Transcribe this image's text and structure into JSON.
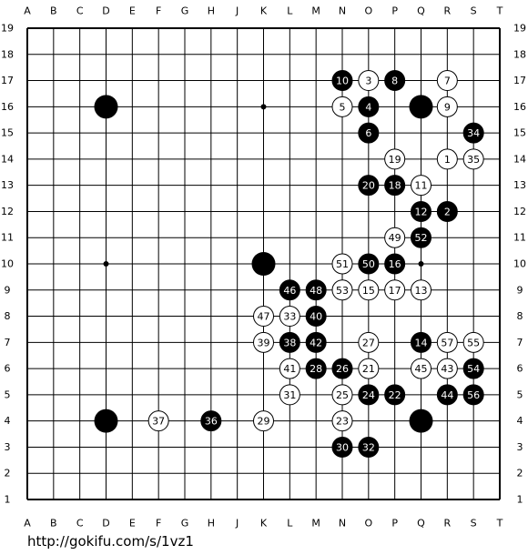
{
  "board": {
    "columns": [
      "A",
      "B",
      "C",
      "D",
      "E",
      "F",
      "G",
      "H",
      "J",
      "K",
      "L",
      "M",
      "N",
      "O",
      "P",
      "Q",
      "R",
      "S",
      "T"
    ],
    "rows": [
      19,
      18,
      17,
      16,
      15,
      14,
      13,
      12,
      11,
      10,
      9,
      8,
      7,
      6,
      5,
      4,
      3,
      2,
      1
    ],
    "stones": [
      {
        "col": "D",
        "row": 16,
        "color": "black"
      },
      {
        "col": "Q",
        "row": 16,
        "color": "black"
      },
      {
        "col": "D",
        "row": 4,
        "color": "black"
      },
      {
        "col": "Q",
        "row": 4,
        "color": "black"
      },
      {
        "col": "K",
        "row": 10,
        "color": "black"
      },
      {
        "col": "R",
        "row": 14,
        "color": "white",
        "label": 1
      },
      {
        "col": "R",
        "row": 12,
        "color": "black",
        "label": 2
      },
      {
        "col": "O",
        "row": 17,
        "color": "white",
        "label": 3
      },
      {
        "col": "O",
        "row": 16,
        "color": "black",
        "label": 4
      },
      {
        "col": "N",
        "row": 16,
        "color": "white",
        "label": 5
      },
      {
        "col": "O",
        "row": 15,
        "color": "black",
        "label": 6
      },
      {
        "col": "R",
        "row": 17,
        "color": "white",
        "label": 7
      },
      {
        "col": "P",
        "row": 17,
        "color": "black",
        "label": 8
      },
      {
        "col": "R",
        "row": 16,
        "color": "white",
        "label": 9
      },
      {
        "col": "N",
        "row": 17,
        "color": "black",
        "label": 10
      },
      {
        "col": "Q",
        "row": 13,
        "color": "white",
        "label": 11
      },
      {
        "col": "Q",
        "row": 12,
        "color": "black",
        "label": 12
      },
      {
        "col": "Q",
        "row": 9,
        "color": "white",
        "label": 13
      },
      {
        "col": "Q",
        "row": 7,
        "color": "black",
        "label": 14
      },
      {
        "col": "O",
        "row": 9,
        "color": "white",
        "label": 15
      },
      {
        "col": "P",
        "row": 10,
        "color": "black",
        "label": 16
      },
      {
        "col": "P",
        "row": 9,
        "color": "white",
        "label": 17
      },
      {
        "col": "P",
        "row": 13,
        "color": "black",
        "label": 18
      },
      {
        "col": "P",
        "row": 14,
        "color": "white",
        "label": 19
      },
      {
        "col": "O",
        "row": 13,
        "color": "black",
        "label": 20
      },
      {
        "col": "O",
        "row": 6,
        "color": "white",
        "label": 21
      },
      {
        "col": "P",
        "row": 5,
        "color": "black",
        "label": 22
      },
      {
        "col": "N",
        "row": 4,
        "color": "white",
        "label": 23
      },
      {
        "col": "O",
        "row": 5,
        "color": "black",
        "label": 24
      },
      {
        "col": "N",
        "row": 5,
        "color": "white",
        "label": 25
      },
      {
        "col": "N",
        "row": 6,
        "color": "black",
        "label": 26
      },
      {
        "col": "O",
        "row": 7,
        "color": "white",
        "label": 27
      },
      {
        "col": "M",
        "row": 6,
        "color": "black",
        "label": 28
      },
      {
        "col": "K",
        "row": 4,
        "color": "white",
        "label": 29
      },
      {
        "col": "N",
        "row": 3,
        "color": "black",
        "label": 30
      },
      {
        "col": "L",
        "row": 5,
        "color": "white",
        "label": 31
      },
      {
        "col": "O",
        "row": 3,
        "color": "black",
        "label": 32
      },
      {
        "col": "L",
        "row": 8,
        "color": "white",
        "label": 33
      },
      {
        "col": "S",
        "row": 15,
        "color": "black",
        "label": 34
      },
      {
        "col": "S",
        "row": 14,
        "color": "white",
        "label": 35
      },
      {
        "col": "H",
        "row": 4,
        "color": "black",
        "label": 36
      },
      {
        "col": "F",
        "row": 4,
        "color": "white",
        "label": 37
      },
      {
        "col": "L",
        "row": 7,
        "color": "black",
        "label": 38
      },
      {
        "col": "K",
        "row": 7,
        "color": "white",
        "label": 39
      },
      {
        "col": "M",
        "row": 8,
        "color": "black",
        "label": 40
      },
      {
        "col": "L",
        "row": 6,
        "color": "white",
        "label": 41
      },
      {
        "col": "M",
        "row": 7,
        "color": "black",
        "label": 42
      },
      {
        "col": "R",
        "row": 6,
        "color": "white",
        "label": 43
      },
      {
        "col": "R",
        "row": 5,
        "color": "black",
        "label": 44
      },
      {
        "col": "Q",
        "row": 6,
        "color": "white",
        "label": 45
      },
      {
        "col": "L",
        "row": 9,
        "color": "black",
        "label": 46
      },
      {
        "col": "K",
        "row": 8,
        "color": "white",
        "label": 47
      },
      {
        "col": "M",
        "row": 9,
        "color": "black",
        "label": 48
      },
      {
        "col": "P",
        "row": 11,
        "color": "white",
        "label": 49
      },
      {
        "col": "O",
        "row": 10,
        "color": "black",
        "label": 50
      },
      {
        "col": "N",
        "row": 10,
        "color": "white",
        "label": 51
      },
      {
        "col": "Q",
        "row": 11,
        "color": "black",
        "label": 52
      },
      {
        "col": "N",
        "row": 9,
        "color": "white",
        "label": 53
      },
      {
        "col": "S",
        "row": 6,
        "color": "black",
        "label": 54
      },
      {
        "col": "S",
        "row": 7,
        "color": "white",
        "label": 55
      },
      {
        "col": "S",
        "row": 5,
        "color": "black",
        "label": 56
      },
      {
        "col": "R",
        "row": 7,
        "color": "white",
        "label": 57
      }
    ]
  },
  "footer": {
    "url": "http://gokifu.com/s/1vz1"
  }
}
